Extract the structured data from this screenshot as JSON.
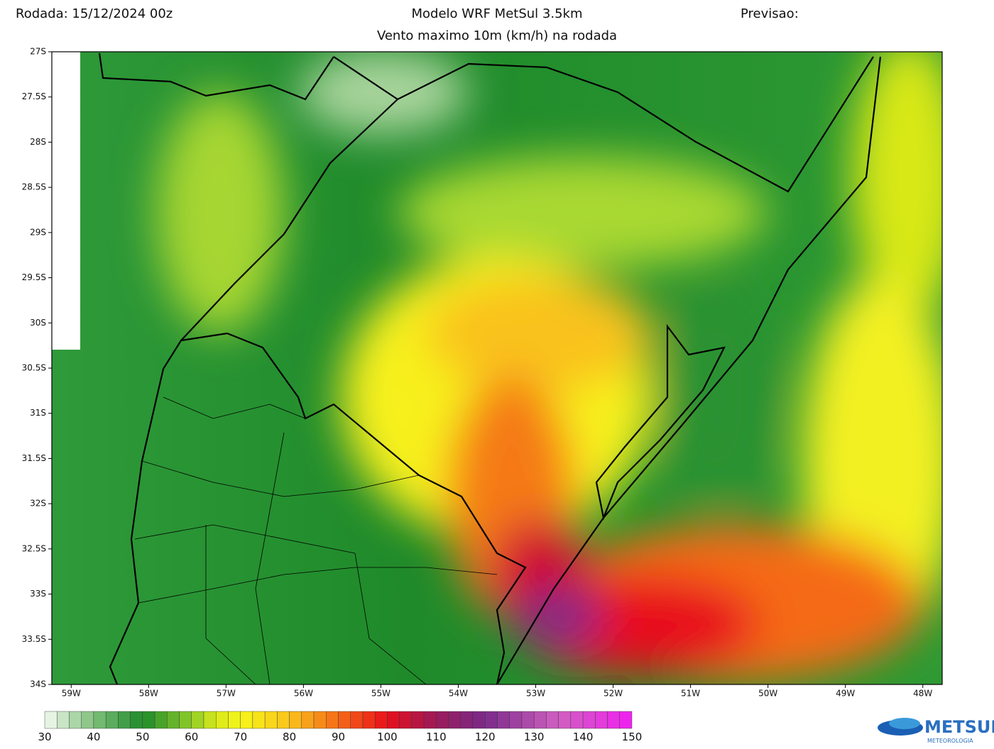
{
  "header": {
    "run": "Rodada: 15/12/2024 00z",
    "model": "Modelo WRF MetSul 3.5km",
    "forecast": "Previsao:",
    "subtitle": "Vento maximo 10m (km/h) na rodada"
  },
  "map": {
    "lonlim": [
      -59.25,
      -47.75
    ],
    "latlim": [
      -34,
      -27
    ],
    "lonticks": [
      {
        "value": -59,
        "label": "59W"
      },
      {
        "value": -58,
        "label": "58W"
      },
      {
        "value": -57,
        "label": "57W"
      },
      {
        "value": -56,
        "label": "56W"
      },
      {
        "value": -55,
        "label": "55W"
      },
      {
        "value": -54,
        "label": "54W"
      },
      {
        "value": -53,
        "label": "53W"
      },
      {
        "value": -52,
        "label": "52W"
      },
      {
        "value": -51,
        "label": "51W"
      },
      {
        "value": -50,
        "label": "50W"
      },
      {
        "value": -49,
        "label": "49W"
      },
      {
        "value": -48,
        "label": "48W"
      }
    ],
    "latticks": [
      {
        "value": -27,
        "label": "27S"
      },
      {
        "value": -27.5,
        "label": "27.5S"
      },
      {
        "value": -28,
        "label": "28S"
      },
      {
        "value": -28.5,
        "label": "28.5S"
      },
      {
        "value": -29,
        "label": "29S"
      },
      {
        "value": -29.5,
        "label": "29.5S"
      },
      {
        "value": -30,
        "label": "30S"
      },
      {
        "value": -30.5,
        "label": "30.5S"
      },
      {
        "value": -31,
        "label": "31S"
      },
      {
        "value": -31.5,
        "label": "31.5S"
      },
      {
        "value": -32,
        "label": "32S"
      },
      {
        "value": -32.5,
        "label": "32.5S"
      },
      {
        "value": -33,
        "label": "33S"
      },
      {
        "value": -33.5,
        "label": "33.5S"
      },
      {
        "value": -34,
        "label": "34S"
      }
    ]
  },
  "colorbar": {
    "lim": [
      30,
      150
    ],
    "step": 2.5,
    "ticks": [
      30,
      40,
      50,
      60,
      70,
      80,
      90,
      100,
      110,
      120,
      130,
      140,
      150
    ],
    "stops": [
      {
        "value": 30,
        "color": "#f4fbf2"
      },
      {
        "value": 40,
        "color": "#7fc07a"
      },
      {
        "value": 50,
        "color": "#1e8a2a"
      },
      {
        "value": 60,
        "color": "#8fcc2a"
      },
      {
        "value": 65,
        "color": "#d8e818"
      },
      {
        "value": 70,
        "color": "#f7f71a"
      },
      {
        "value": 80,
        "color": "#f9c21c"
      },
      {
        "value": 90,
        "color": "#f56a18"
      },
      {
        "value": 100,
        "color": "#e8101a"
      },
      {
        "value": 110,
        "color": "#9b1a5a"
      },
      {
        "value": 120,
        "color": "#7a2a8a"
      },
      {
        "value": 135,
        "color": "#d060c0"
      },
      {
        "value": 150,
        "color": "#f020f0"
      }
    ]
  },
  "logo": {
    "name": "METSUL",
    "sub": "METEOROLOGIA"
  }
}
